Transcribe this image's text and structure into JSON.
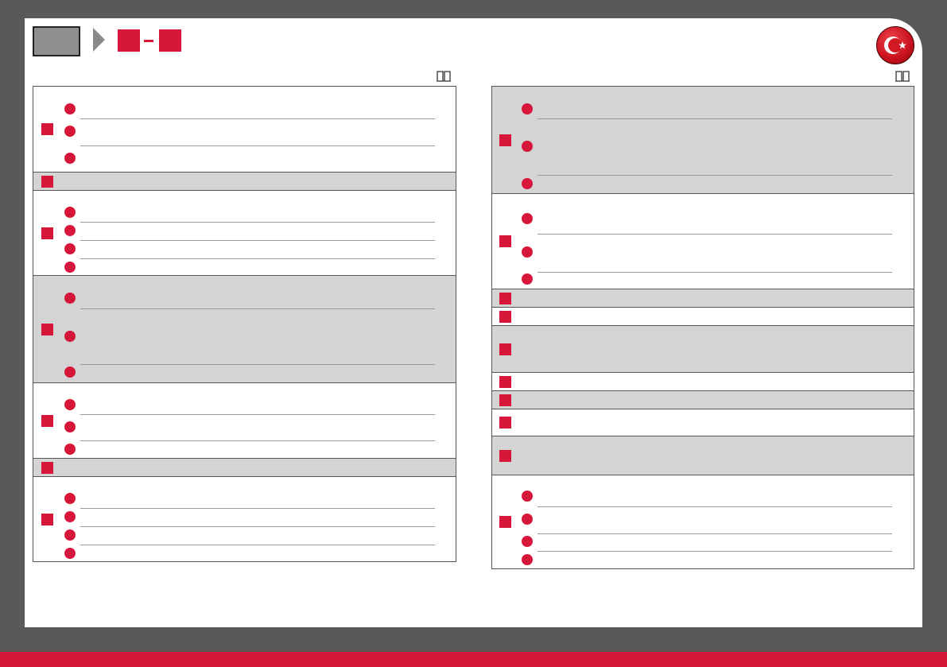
{
  "colors": {
    "accent": "#d7173a",
    "background": "#5a5859",
    "row_shade": "#d4d4d4"
  },
  "icons": {
    "flag": "turkey-flag-icon",
    "manual": "book-icon",
    "breadcrumb": "chevron-right-icon"
  }
}
